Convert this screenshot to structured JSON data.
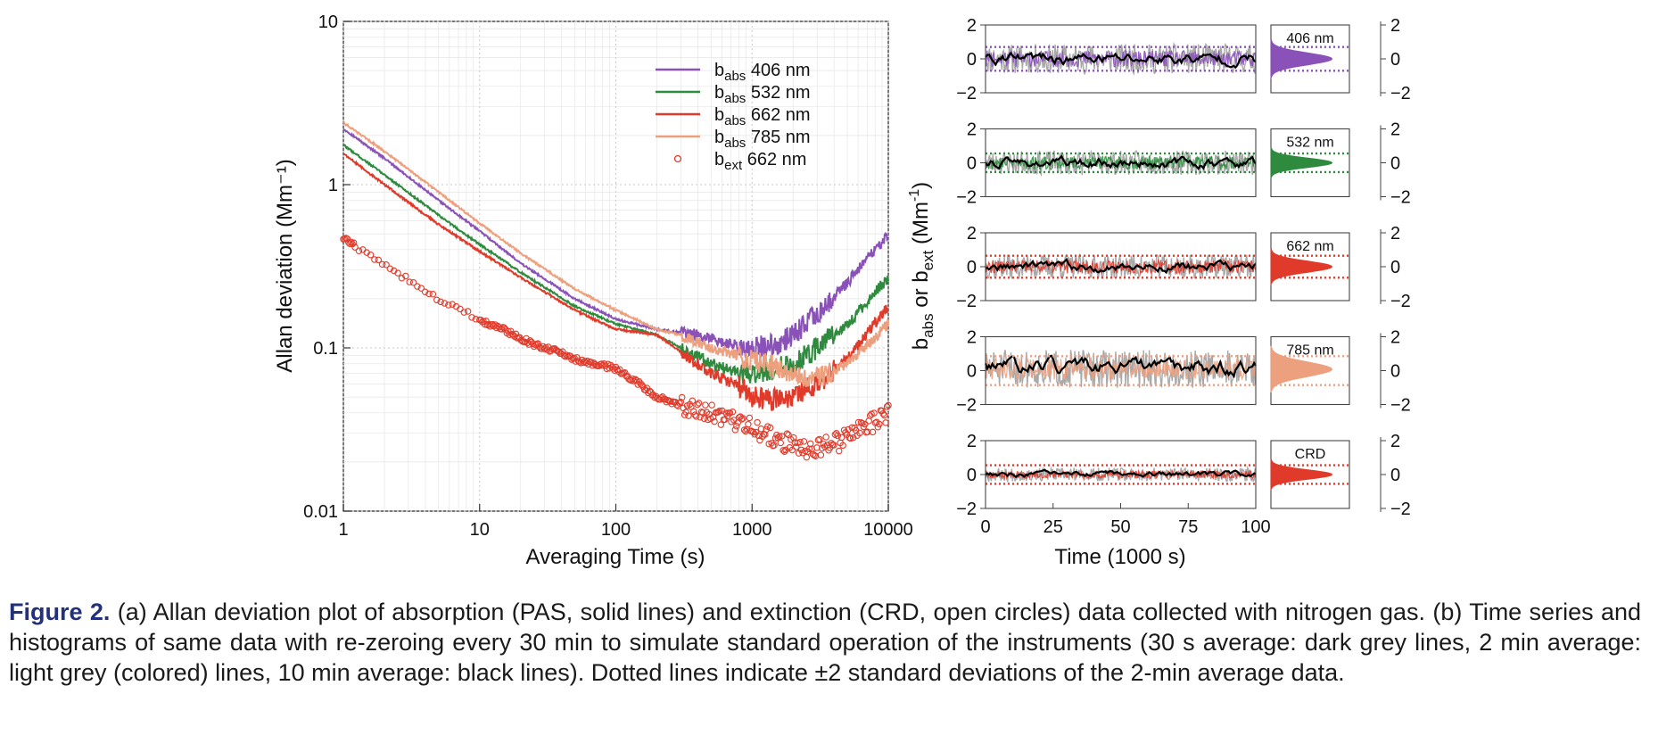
{
  "caption": {
    "label": "Figure 2.",
    "text": "(a) Allan deviation plot of absorption (PAS, solid lines) and extinction (CRD, open circles) data collected with nitrogen gas. (b) Time series and histograms of same data with re-zeroing every 30 min to simulate standard operation of the instruments (30 s average: dark grey lines, 2 min average: light grey (colored) lines, 10 min average: black lines). Dotted lines indicate ±2 standard deviations of the 2-min average data."
  },
  "chart_data": [
    {
      "type": "line",
      "panel": "a",
      "title": "",
      "xlabel": "Averaging Time (s)",
      "ylabel": "Allan deviation (Mm⁻¹)",
      "xscale": "log",
      "yscale": "log",
      "xlim": [
        1,
        10000
      ],
      "ylim": [
        0.01,
        10
      ],
      "xticks": [
        "1",
        "10",
        "100",
        "1000",
        "10000"
      ],
      "yticks": [
        "0.01",
        "0.1",
        "1",
        "10"
      ],
      "grid": true,
      "legend_position": "top-right",
      "legend": [
        {
          "label": "b",
          "sub": "abs",
          "rest": " 406 nm",
          "color": "#8a52b8",
          "marker": "line"
        },
        {
          "label": "b",
          "sub": "abs",
          "rest": " 532 nm",
          "color": "#2e8b3e",
          "marker": "line"
        },
        {
          "label": "b",
          "sub": "abs",
          "rest": " 662 nm",
          "color": "#e03a2a",
          "marker": "line"
        },
        {
          "label": "b",
          "sub": "abs",
          "rest": " 785 nm",
          "color": "#eda07e",
          "marker": "line"
        },
        {
          "label": "b",
          "sub": "ext",
          "rest": "  662 nm",
          "color": "#e03a2a",
          "marker": "circle"
        }
      ],
      "series": [
        {
          "key": "abs406",
          "x": [
            1,
            2,
            5,
            10,
            20,
            50,
            100,
            200,
            400,
            700,
            1000,
            1500,
            2000,
            3000,
            5000,
            10000
          ],
          "values": [
            2.2,
            1.45,
            0.8,
            0.52,
            0.33,
            0.2,
            0.15,
            0.13,
            0.12,
            0.105,
            0.1,
            0.105,
            0.12,
            0.16,
            0.25,
            0.5
          ]
        },
        {
          "key": "abs532",
          "x": [
            1,
            2,
            5,
            10,
            20,
            50,
            100,
            200,
            500,
            800,
            1000,
            1500,
            2000,
            3000,
            5000,
            10000
          ],
          "values": [
            1.75,
            1.15,
            0.65,
            0.43,
            0.29,
            0.18,
            0.14,
            0.12,
            0.08,
            0.07,
            0.07,
            0.075,
            0.08,
            0.1,
            0.14,
            0.27
          ]
        },
        {
          "key": "abs662",
          "x": [
            1,
            2,
            5,
            10,
            20,
            50,
            100,
            200,
            500,
            800,
            1000,
            1500,
            2000,
            3000,
            5000,
            10000
          ],
          "values": [
            1.55,
            1.0,
            0.57,
            0.39,
            0.27,
            0.17,
            0.13,
            0.12,
            0.07,
            0.058,
            0.05,
            0.048,
            0.05,
            0.06,
            0.085,
            0.18
          ]
        },
        {
          "key": "abs785",
          "x": [
            1,
            2,
            5,
            10,
            20,
            50,
            100,
            200,
            300,
            500,
            1000,
            2000,
            3000,
            5000,
            10000
          ],
          "values": [
            2.4,
            1.6,
            0.9,
            0.58,
            0.38,
            0.23,
            0.17,
            0.13,
            0.12,
            0.1,
            0.085,
            0.07,
            0.065,
            0.08,
            0.14
          ]
        },
        {
          "key": "ext662",
          "x": [
            1,
            2,
            3,
            4,
            5,
            6,
            7,
            8,
            9,
            10,
            12,
            15,
            20,
            25,
            30,
            40,
            50,
            70,
            100,
            150,
            200,
            300,
            500,
            700,
            1000,
            1500,
            2000,
            2500,
            3000,
            4000,
            5000,
            7000,
            10000
          ],
          "values": [
            0.47,
            0.32,
            0.26,
            0.22,
            0.2,
            0.185,
            0.175,
            0.165,
            0.155,
            0.148,
            0.14,
            0.13,
            0.115,
            0.105,
            0.1,
            0.093,
            0.085,
            0.08,
            0.075,
            0.06,
            0.05,
            0.045,
            0.04,
            0.036,
            0.032,
            0.028,
            0.025,
            0.024,
            0.024,
            0.026,
            0.028,
            0.033,
            0.04
          ]
        }
      ]
    },
    {
      "type": "line",
      "panel": "b",
      "xlabel": "Time (1000 s)",
      "ylabel": "b_abs or b_ext (Mm⁻¹)",
      "xlim": [
        0,
        100
      ],
      "xticks": [
        "0",
        "25",
        "50",
        "75",
        "100"
      ],
      "ylim": [
        -2,
        2
      ],
      "yticks": [
        "2",
        "0",
        "−2"
      ],
      "histogram_yticks": [
        "2",
        "0",
        "−2"
      ],
      "panels": [
        {
          "label": "406 nm",
          "color": "#8a52b8",
          "sd2": 0.7,
          "noise": 0.55,
          "mean10": 0.0,
          "seed": 11
        },
        {
          "label": "532 nm",
          "color": "#2e8b3e",
          "sd2": 0.55,
          "noise": 0.45,
          "mean10": 0.0,
          "seed": 23
        },
        {
          "label": "662 nm",
          "color": "#e03a2a",
          "sd2": 0.65,
          "noise": 0.45,
          "mean10": 0.0,
          "seed": 37
        },
        {
          "label": "785 nm",
          "color": "#eda07e",
          "sd2": 0.85,
          "noise": 0.7,
          "mean10": 0.2,
          "seed": 51
        },
        {
          "label": "CRD",
          "color": "#e03a2a",
          "sd2": 0.55,
          "noise": 0.25,
          "mean10": 0.0,
          "seed": 67
        }
      ]
    }
  ]
}
